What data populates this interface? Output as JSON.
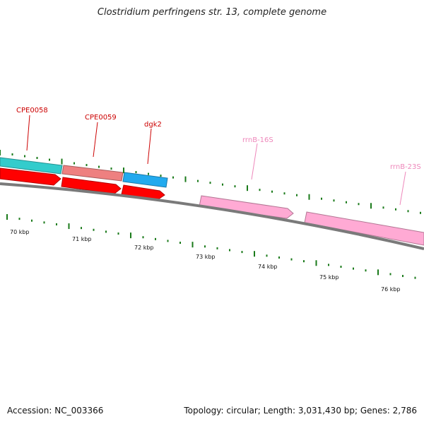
{
  "title": "Clostridium perfringens str. 13, complete genome",
  "accession": "Accession: NC_003366",
  "summary": "Topology: circular; Length: 3,031,430 bp; Genes: 2,786",
  "colors": {
    "backbone": "#7a7a7a",
    "tick": "#1a7a1a",
    "label_red": "#cc0000",
    "label_pink": "#ee88bb",
    "teal": "#33cccc",
    "salmon": "#ee8080",
    "sky": "#22aaee",
    "red": "#ff0000",
    "pink": "#ffaad4"
  },
  "genes": [
    {
      "id": "CPE0058",
      "label": "CPE0058",
      "track": "outer",
      "color": "teal",
      "labeled": true
    },
    {
      "id": "CPE0059",
      "label": "CPE0059",
      "track": "outer",
      "color": "salmon",
      "labeled": true
    },
    {
      "id": "dgk2",
      "label": "dgk2",
      "track": "outer",
      "color": "sky",
      "labeled": true
    },
    {
      "id": "red1",
      "label": "",
      "track": "inner",
      "color": "red",
      "labeled": false
    },
    {
      "id": "red2",
      "label": "",
      "track": "inner",
      "color": "red",
      "labeled": false
    },
    {
      "id": "red3",
      "label": "",
      "track": "inner",
      "color": "red",
      "labeled": false
    },
    {
      "id": "rrnB-16S",
      "label": "rrnB-16S",
      "track": "inner",
      "color": "pink",
      "labeled": true
    },
    {
      "id": "rrnB-23S",
      "label": "rrnB-23S",
      "track": "inner",
      "color": "pink",
      "labeled": true
    }
  ],
  "scale_labels": [
    "70 kbp",
    "71 kbp",
    "72 kbp",
    "73 kbp",
    "74 kbp",
    "75 kbp",
    "76 kbp"
  ]
}
